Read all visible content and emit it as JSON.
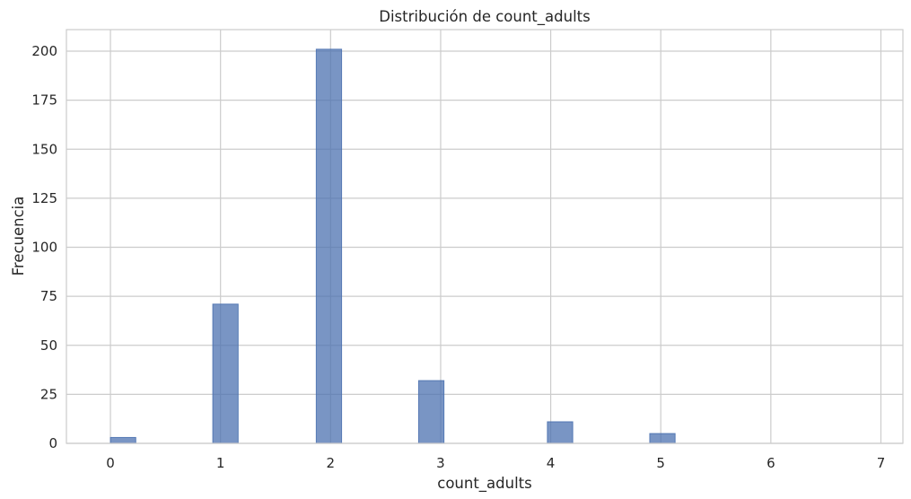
{
  "chart_data": {
    "type": "bar",
    "title": "Distribución de count_adults",
    "xlabel": "count_adults",
    "ylabel": "Frecuencia",
    "xlim": [
      -0.4,
      7.2
    ],
    "ylim": [
      0,
      211
    ],
    "x_ticks": [
      0,
      1,
      2,
      3,
      4,
      5,
      6,
      7
    ],
    "y_ticks": [
      0,
      25,
      50,
      75,
      100,
      125,
      150,
      175,
      200
    ],
    "grid": true,
    "bin_width": 0.23,
    "bins": [
      {
        "x_start": 0.0,
        "x_end": 0.23,
        "value": 3
      },
      {
        "x_start": 0.93,
        "x_end": 1.16,
        "value": 71
      },
      {
        "x_start": 1.87,
        "x_end": 2.1,
        "value": 201
      },
      {
        "x_start": 2.8,
        "x_end": 3.03,
        "value": 32
      },
      {
        "x_start": 3.97,
        "x_end": 4.2,
        "value": 11
      },
      {
        "x_start": 4.9,
        "x_end": 5.13,
        "value": 5
      }
    ],
    "colors": {
      "bar": "#4c72b0",
      "grid": "#cccccc"
    }
  }
}
